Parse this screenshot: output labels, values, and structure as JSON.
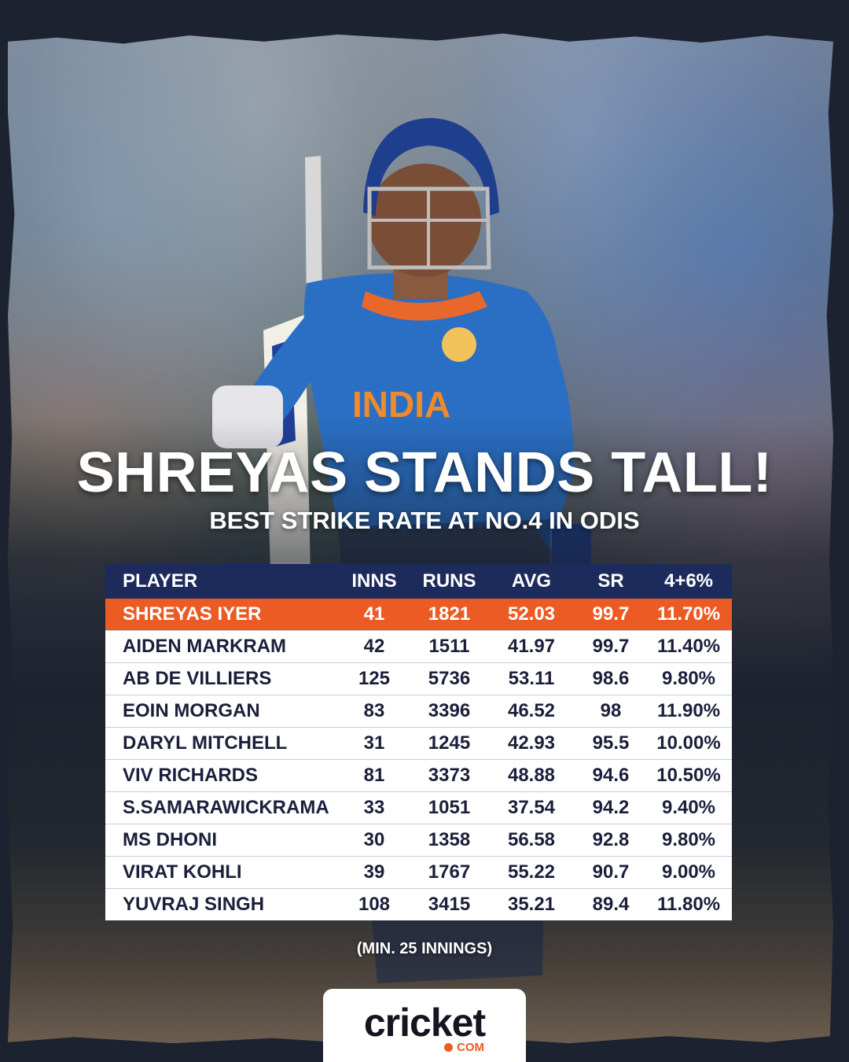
{
  "title": "SHREYAS STANDS TALL!",
  "subtitle": "BEST STRIKE RATE AT NO.4 IN ODIS",
  "note": "(MIN. 25 INNINGS)",
  "brand": {
    "name": "cricket",
    "suffix": "COM"
  },
  "colors": {
    "header": "#1d2a5c",
    "highlight": "#ec5b24",
    "row": "#ffffff",
    "text": "#1b1f3a"
  },
  "chart_data": {
    "type": "table",
    "columns": [
      "PLAYER",
      "INNS",
      "RUNS",
      "AVG",
      "SR",
      "4+6%"
    ],
    "highlight_row": 0,
    "rows": [
      [
        "SHREYAS IYER",
        "41",
        "1821",
        "52.03",
        "99.7",
        "11.70%"
      ],
      [
        "AIDEN MARKRAM",
        "42",
        "1511",
        "41.97",
        "99.7",
        "11.40%"
      ],
      [
        "AB DE VILLIERS",
        "125",
        "5736",
        "53.11",
        "98.6",
        "9.80%"
      ],
      [
        "EOIN MORGAN",
        "83",
        "3396",
        "46.52",
        "98",
        "11.90%"
      ],
      [
        "DARYL MITCHELL",
        "31",
        "1245",
        "42.93",
        "95.5",
        "10.00%"
      ],
      [
        "VIV RICHARDS",
        "81",
        "3373",
        "48.88",
        "94.6",
        "10.50%"
      ],
      [
        "S.SAMARAWICKRAMA",
        "33",
        "1051",
        "37.54",
        "94.2",
        "9.40%"
      ],
      [
        "MS DHONI",
        "30",
        "1358",
        "56.58",
        "92.8",
        "9.80%"
      ],
      [
        "VIRAT KOHLI",
        "39",
        "1767",
        "55.22",
        "90.7",
        "9.00%"
      ],
      [
        "YUVRAJ SINGH",
        "108",
        "3415",
        "35.21",
        "89.4",
        "11.80%"
      ]
    ]
  }
}
